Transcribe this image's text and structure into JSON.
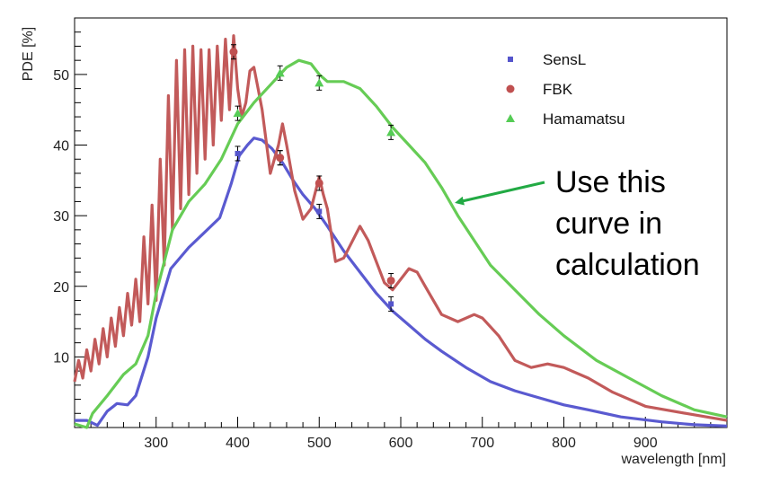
{
  "chart_data": {
    "type": "line",
    "title": "",
    "xlabel": "wavelength [nm]",
    "ylabel": "PDE [%]",
    "xlim": [
      200,
      1000
    ],
    "ylim": [
      0,
      58
    ],
    "x_ticks": [
      300,
      400,
      500,
      600,
      700,
      800,
      900
    ],
    "y_ticks": [
      10,
      20,
      30,
      40,
      50
    ],
    "grid": false,
    "legend_position": "top-right",
    "legend": [
      {
        "name": "SensL",
        "marker": "square",
        "color": "#5555cc"
      },
      {
        "name": "FBK",
        "marker": "circle",
        "color": "#c05050"
      },
      {
        "name": "Hamamatsu",
        "marker": "triangle",
        "color": "#55cc55"
      }
    ],
    "series": [
      {
        "name": "SensL",
        "color": "#5a5ad0",
        "x": [
          200,
          215,
          228,
          240,
          252,
          265,
          275,
          290,
          300,
          318,
          340,
          360,
          378,
          392,
          402,
          412,
          420,
          430,
          442,
          455,
          468,
          480,
          495,
          510,
          530,
          550,
          570,
          590,
          610,
          630,
          650,
          680,
          710,
          740,
          770,
          800,
          830,
          870,
          920,
          960,
          1000
        ],
        "y": [
          1,
          1,
          0.3,
          2.3,
          3.4,
          3.2,
          4.5,
          10,
          15.5,
          22.5,
          25.5,
          27.7,
          29.7,
          34.5,
          38.5,
          40,
          41,
          40.7,
          39.5,
          37.5,
          35,
          33,
          31,
          28.5,
          25,
          22,
          19,
          16.5,
          14.5,
          12.5,
          10.8,
          8.5,
          6.5,
          5.2,
          4.2,
          3.2,
          2.5,
          1.5,
          0.8,
          0.4,
          0.2
        ]
      },
      {
        "name": "FBK",
        "color": "#c25a5a",
        "x": [
          200,
          205,
          210,
          215,
          220,
          225,
          230,
          235,
          240,
          245,
          250,
          255,
          260,
          265,
          270,
          275,
          280,
          285,
          290,
          295,
          300,
          305,
          310,
          315,
          320,
          325,
          330,
          335,
          340,
          345,
          350,
          355,
          360,
          365,
          370,
          375,
          380,
          385,
          390,
          395,
          400,
          405,
          410,
          415,
          420,
          425,
          430,
          440,
          450,
          455,
          460,
          470,
          480,
          490,
          500,
          505,
          510,
          520,
          530,
          550,
          560,
          580,
          590,
          600,
          610,
          620,
          630,
          650,
          670,
          690,
          700,
          720,
          740,
          760,
          780,
          800,
          830,
          860,
          900,
          950,
          1000
        ],
        "y": [
          6.5,
          9.5,
          7,
          11,
          8,
          12.5,
          9,
          14,
          10,
          15.5,
          11.5,
          17,
          13,
          19,
          14.5,
          21,
          15,
          27,
          17.5,
          31.5,
          18,
          38,
          23,
          47,
          28,
          52,
          31,
          53.5,
          33,
          54,
          36,
          53.5,
          38,
          53.5,
          40,
          54,
          43.5,
          55,
          45,
          55.5,
          48,
          44,
          46,
          50.5,
          51,
          48,
          45,
          36,
          40,
          43,
          40,
          33.5,
          29.5,
          31,
          35.5,
          33,
          31,
          23.5,
          24,
          28.5,
          26.5,
          20.5,
          19.5,
          21,
          22.5,
          22,
          20,
          16,
          15,
          16,
          15.5,
          13,
          9.5,
          8.5,
          9,
          8.5,
          7,
          5,
          3,
          2,
          1
        ]
      },
      {
        "name": "Hamamatsu",
        "color": "#66cc55",
        "x": [
          200,
          215,
          222,
          240,
          260,
          275,
          290,
          300,
          320,
          340,
          360,
          380,
          400,
          420,
          440,
          460,
          475,
          490,
          500,
          510,
          530,
          550,
          570,
          590,
          610,
          630,
          650,
          670,
          690,
          710,
          740,
          770,
          800,
          840,
          880,
          920,
          960,
          1000
        ],
        "y": [
          0.5,
          0,
          2,
          4.5,
          7.5,
          9,
          13,
          19,
          28,
          32,
          34.5,
          38,
          43,
          46,
          48.5,
          51,
          52,
          51.5,
          50,
          49,
          49,
          48,
          45.5,
          42.5,
          40,
          37.5,
          34,
          30,
          26.5,
          23,
          19.5,
          16,
          13,
          9.5,
          7,
          4.5,
          2.5,
          1.5
        ]
      }
    ],
    "measured_points": [
      {
        "series": "SensL",
        "x": [
          400,
          452,
          500,
          588
        ],
        "y": [
          38.8,
          38.2,
          30.6,
          17.5
        ]
      },
      {
        "series": "FBK",
        "x": [
          395,
          452,
          500,
          588
        ],
        "y": [
          53.2,
          38.2,
          34.6,
          20.8
        ]
      },
      {
        "series": "Hamamatsu",
        "x": [
          400,
          452,
          500,
          588
        ],
        "y": [
          44.5,
          50.2,
          48.8,
          41.8
        ]
      }
    ],
    "annotation": {
      "lines": [
        "Use this",
        "curve in",
        "calculation"
      ],
      "target_series": "Hamamatsu",
      "arrow_color": "#22aa44"
    }
  }
}
